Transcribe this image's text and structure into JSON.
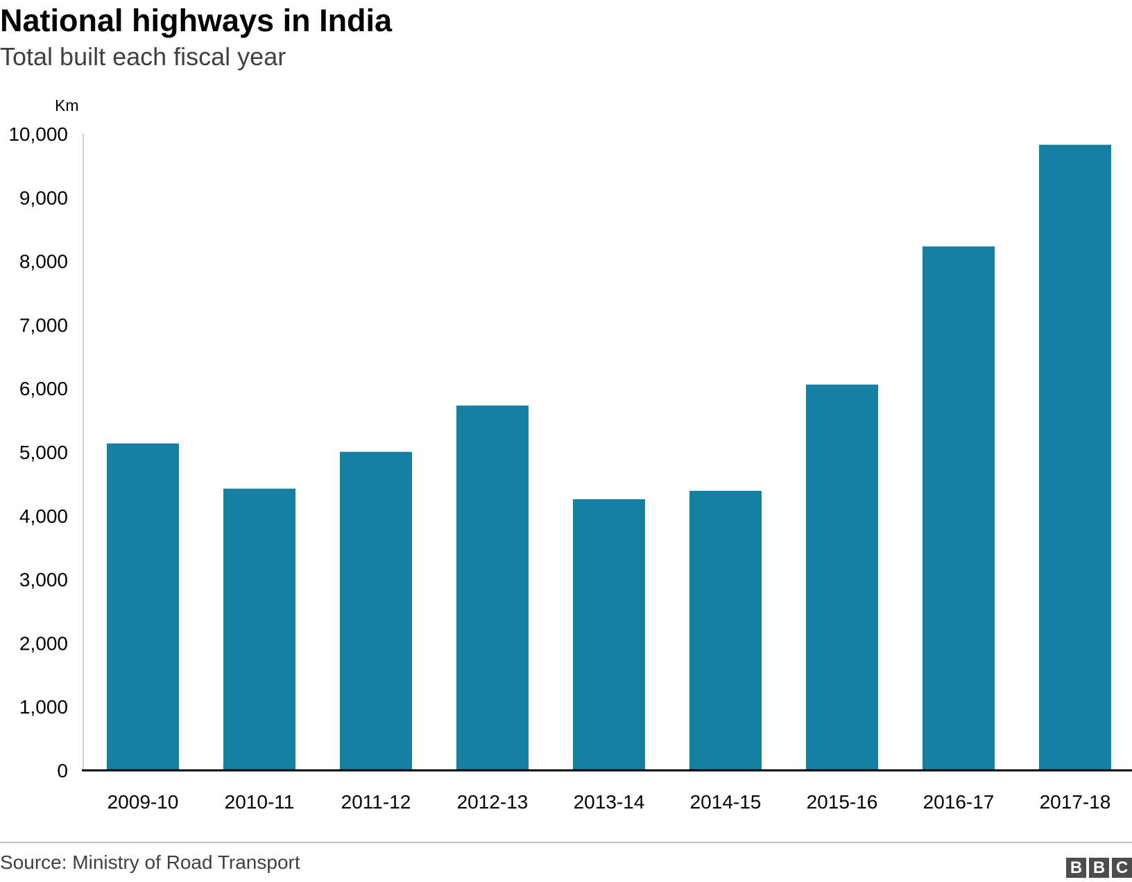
{
  "chart_data": {
    "type": "bar",
    "title": "National highways in India",
    "subtitle": "Total built each fiscal year",
    "ylabel": "Km",
    "xlabel": "",
    "categories": [
      "2009-10",
      "2010-11",
      "2011-12",
      "2012-13",
      "2013-14",
      "2014-15",
      "2015-16",
      "2016-17",
      "2017-18"
    ],
    "values": [
      5136,
      4426,
      5004,
      5732,
      4260,
      4392,
      6061,
      8231,
      9829
    ],
    "ylim": [
      0,
      10000
    ],
    "yticks": [
      0,
      1000,
      2000,
      3000,
      4000,
      5000,
      6000,
      7000,
      8000,
      9000,
      10000
    ],
    "ytick_labels": [
      "0",
      "1,000",
      "2,000",
      "3,000",
      "4,000",
      "5,000",
      "6,000",
      "7,000",
      "8,000",
      "9,000",
      "10,000"
    ],
    "bar_color": "#1580a2",
    "grid": false,
    "legend": "none"
  },
  "footer": {
    "source": "Source: Ministry of Road Transport",
    "logo_letters": [
      "B",
      "B",
      "C"
    ]
  }
}
